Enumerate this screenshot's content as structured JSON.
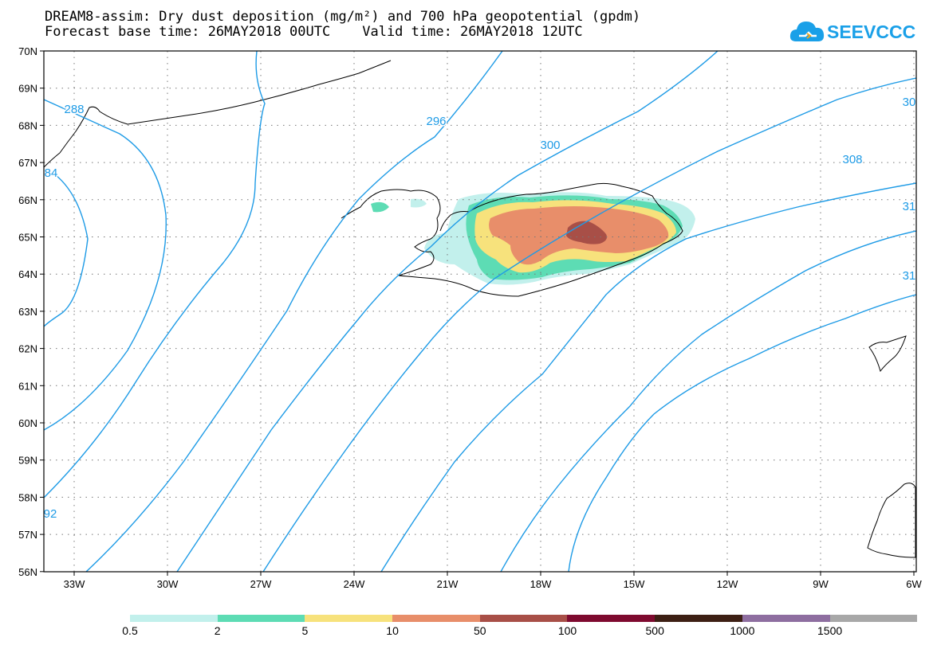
{
  "header": {
    "title_line1": "DREAM8-assim: Dry dust deposition (mg/m²) and 700 hPa geopotential (gpdm)",
    "forecast_base": "Forecast base time: 26MAY2018 00UTC",
    "valid_time": "Valid time: 26MAY2018 12UTC"
  },
  "logo": {
    "text": "SEEVCCC",
    "color": "#1aa0e8",
    "icon": "cloud-icon"
  },
  "map": {
    "lon_labels": [
      "33W",
      "30W",
      "27W",
      "24W",
      "21W",
      "18W",
      "15W",
      "12W",
      "9W",
      "6W"
    ],
    "lat_labels": [
      "70N",
      "69N",
      "68N",
      "67N",
      "66N",
      "65N",
      "64N",
      "63N",
      "62N",
      "61N",
      "60N",
      "59N",
      "58N",
      "57N",
      "56N"
    ],
    "contour_color": "#1e9be6",
    "contour_labels": [
      "288",
      "296",
      "300",
      "308",
      "84",
      "92",
      "30",
      "31",
      "31"
    ]
  },
  "legend": {
    "levels": [
      "0.5",
      "2",
      "5",
      "10",
      "50",
      "100",
      "500",
      "1000",
      "1500"
    ],
    "colors": [
      "#c2f0ec",
      "#5ddcb4",
      "#f7e27c",
      "#e88e6a",
      "#a84f47",
      "#7e0a2f",
      "#3d1f14",
      "#8e6ea0",
      "#a8a8a8"
    ]
  }
}
